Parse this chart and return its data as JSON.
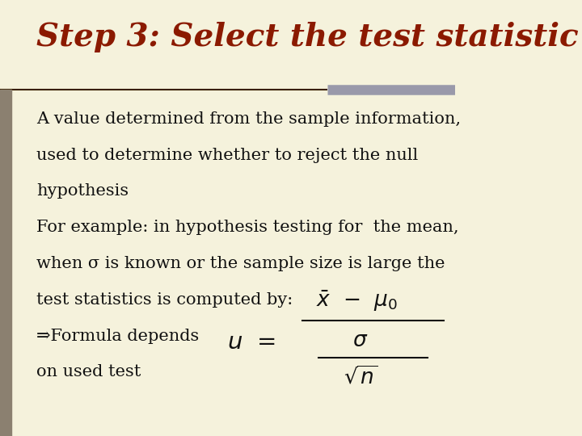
{
  "background_color": "#f5f2dc",
  "title": "Step 3: Select the test statistic",
  "title_color": "#8B1A00",
  "title_fontsize": 28,
  "left_bar_color": "#8B8070",
  "right_bar_color": "#9999AA",
  "body_text_lines": [
    "A value determined from the sample information,",
    "used to determine whether to reject the null",
    "hypothesis",
    "For example: in hypothesis testing for  the mean,",
    "when σ is known or the sample size is large the",
    "test statistics is computed by:",
    "⇒Formula depends",
    "on used test"
  ],
  "body_fontsize": 15,
  "body_color": "#111111"
}
